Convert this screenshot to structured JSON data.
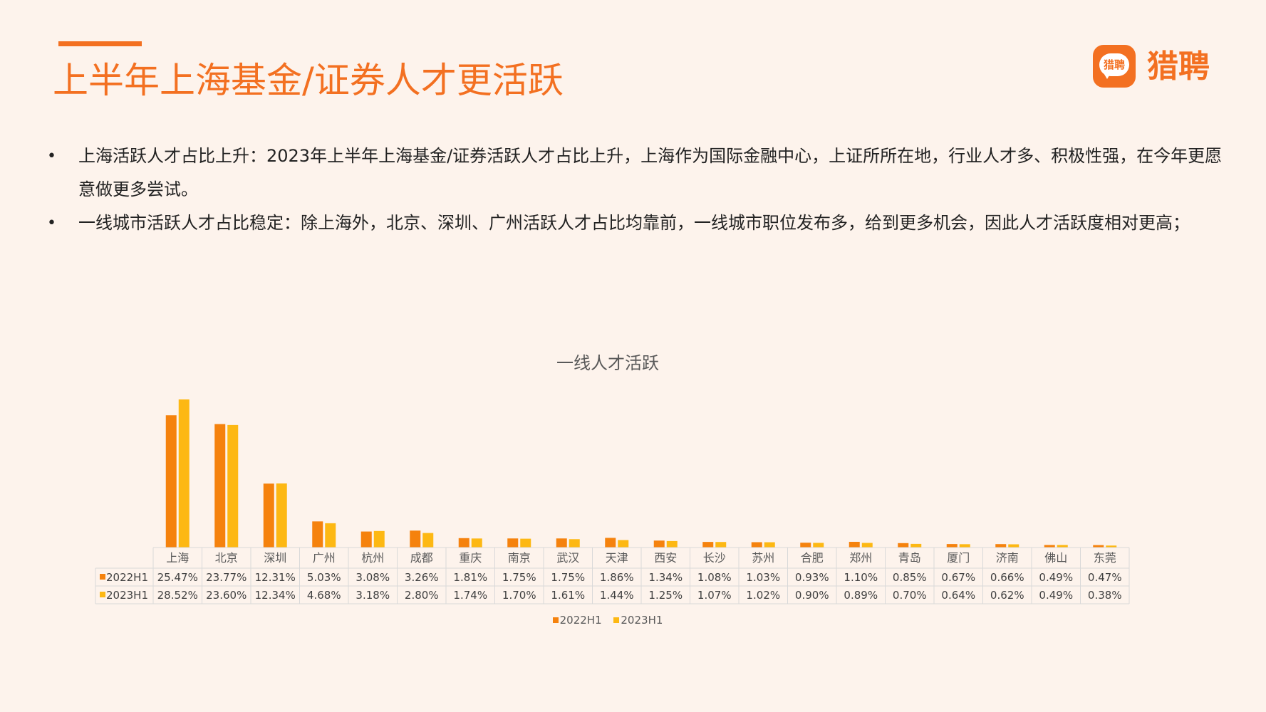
{
  "header": {
    "title": "上半年上海基金/证券人才更活跃",
    "logo_badge_text": "猎聘",
    "logo_text": "猎聘"
  },
  "bullets": [
    {
      "symbol": "•",
      "text": "上海活跃人才占比上升：2023年上半年上海基金/证券活跃人才占比上升，上海作为国际金融中心，上证所所在地，行业人才多、积极性强，在今年更愿意做更多尝试。"
    },
    {
      "symbol": "•",
      "text": "一线城市活跃人才占比稳定：除上海外，北京、深圳、广州活跃人才占比均靠前，一线城市职位发布多，给到更多机会，因此人才活跃度相对更高；"
    }
  ],
  "colors": {
    "accent": "#f37021",
    "series_2022": "#f5820d",
    "series_2023": "#fdb813"
  },
  "chart_data": {
    "type": "bar",
    "title": "一线人才活跃",
    "categories": [
      "上海",
      "北京",
      "深圳",
      "广州",
      "杭州",
      "成都",
      "重庆",
      "南京",
      "武汉",
      "天津",
      "西安",
      "长沙",
      "苏州",
      "合肥",
      "郑州",
      "青岛",
      "厦门",
      "济南",
      "佛山",
      "东莞"
    ],
    "series": [
      {
        "name": "2022H1",
        "values": [
          25.47,
          23.77,
          12.31,
          5.03,
          3.08,
          3.26,
          1.81,
          1.75,
          1.75,
          1.86,
          1.34,
          1.08,
          1.03,
          0.93,
          1.1,
          0.85,
          0.67,
          0.66,
          0.49,
          0.47
        ],
        "labels": [
          "25.47%",
          "23.77%",
          "12.31%",
          "5.03%",
          "3.08%",
          "3.26%",
          "1.81%",
          "1.75%",
          "1.75%",
          "1.86%",
          "1.34%",
          "1.08%",
          "1.03%",
          "0.93%",
          "1.10%",
          "0.85%",
          "0.67%",
          "0.66%",
          "0.49%",
          "0.47%"
        ]
      },
      {
        "name": "2023H1",
        "values": [
          28.52,
          23.6,
          12.34,
          4.68,
          3.18,
          2.8,
          1.74,
          1.7,
          1.61,
          1.44,
          1.25,
          1.07,
          1.02,
          0.9,
          0.89,
          0.7,
          0.64,
          0.62,
          0.49,
          0.38
        ],
        "labels": [
          "28.52%",
          "23.60%",
          "12.34%",
          "4.68%",
          "3.18%",
          "2.80%",
          "1.74%",
          "1.70%",
          "1.61%",
          "1.44%",
          "1.25%",
          "1.07%",
          "1.02%",
          "0.90%",
          "0.89%",
          "0.70%",
          "0.64%",
          "0.62%",
          "0.49%",
          "0.38%"
        ]
      }
    ],
    "ylim": [
      0,
      30
    ],
    "legend": "bottom",
    "data_table": true,
    "grid": false
  }
}
